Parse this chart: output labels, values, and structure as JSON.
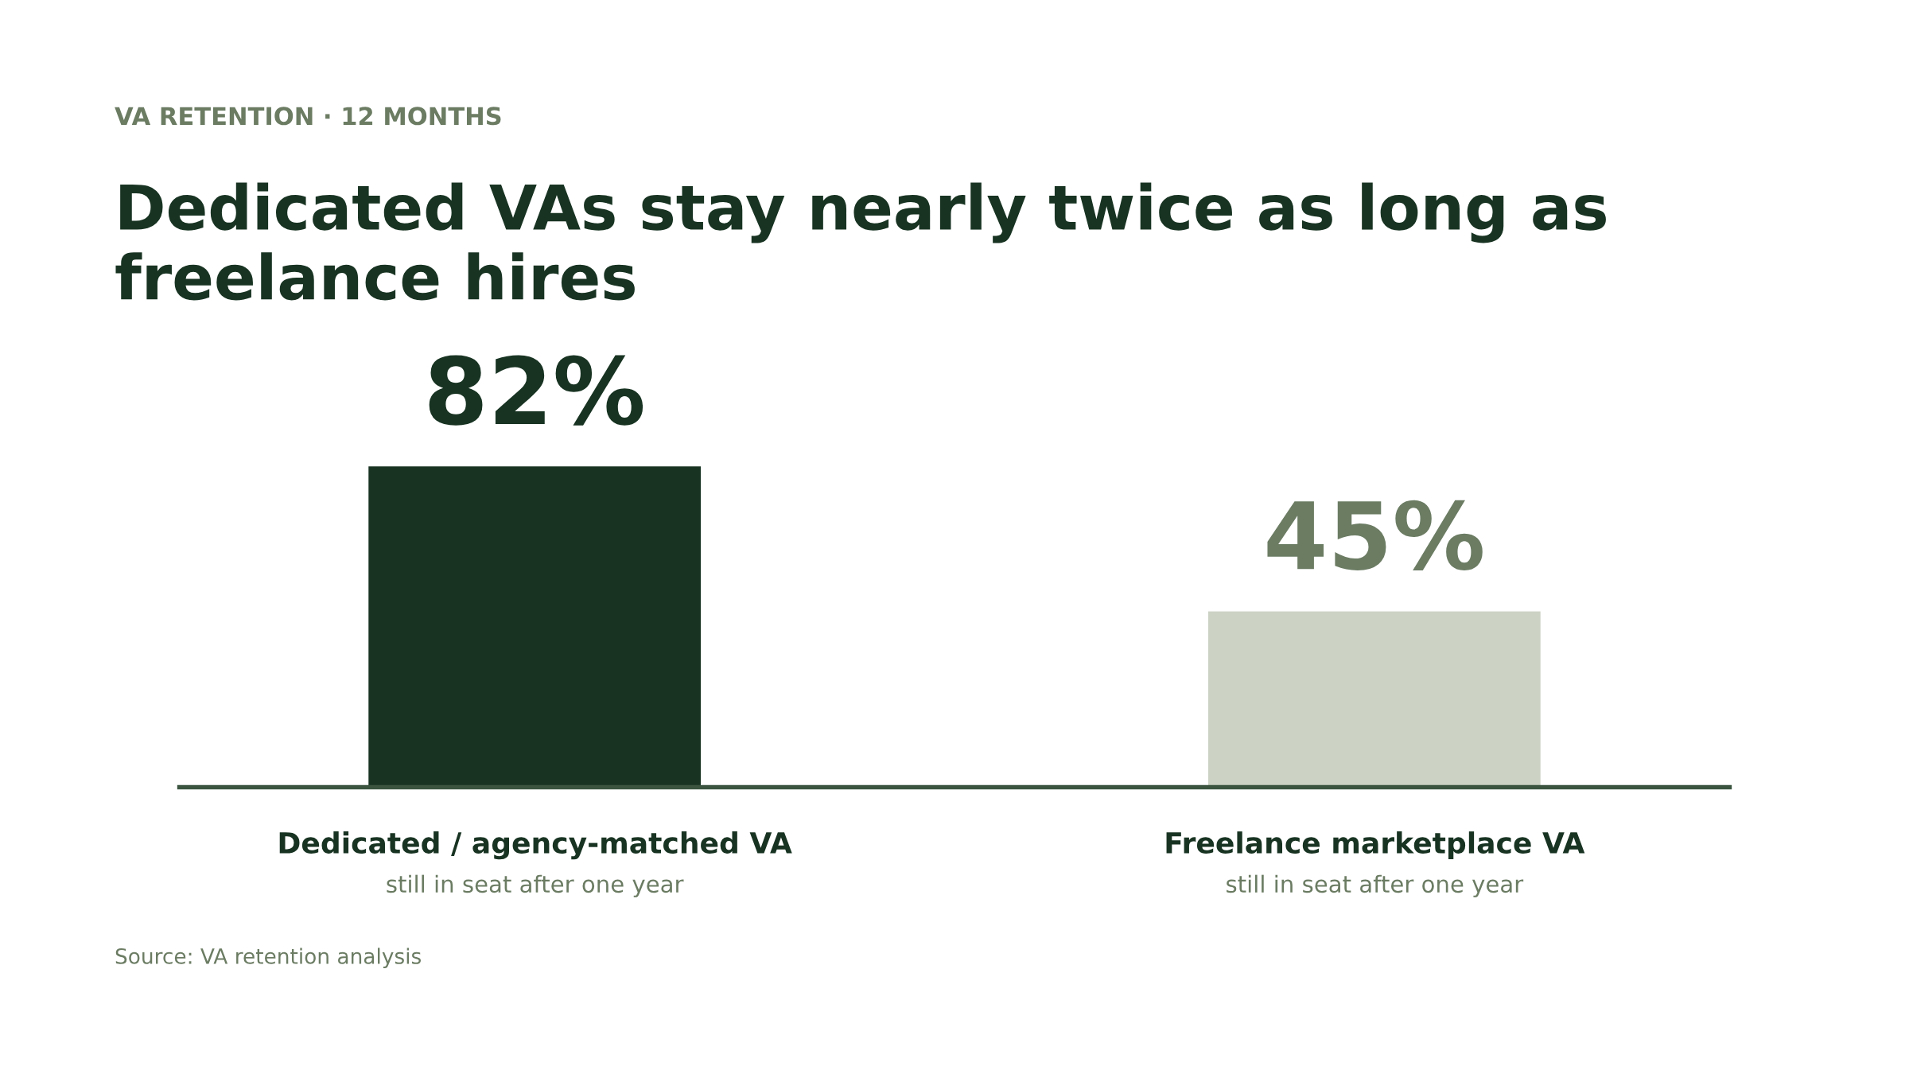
{
  "chart_data": {
    "type": "bar",
    "subtitle": "VA RETENTION · 12 MONTHS",
    "title": "Dedicated VAs stay nearly twice as long as freelance hires",
    "categories": [
      "Dedicated / agency-matched VA",
      "Freelance marketplace VA"
    ],
    "values": [
      82,
      45
    ],
    "colors": [
      "#183322",
      "#ccd2c4"
    ],
    "value_labels": [
      "82%",
      "45%"
    ],
    "annotations": [
      "still in seat after one year",
      "still in seat after one year",
      "Source: VA retention analysis"
    ],
    "grid": false,
    "legend": false
  }
}
